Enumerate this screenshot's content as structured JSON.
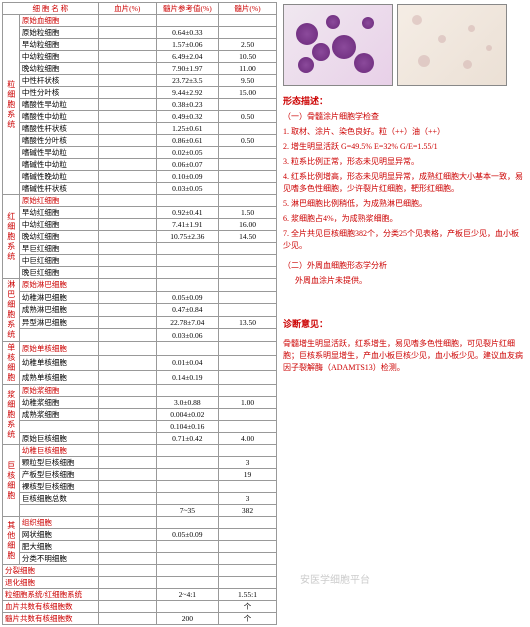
{
  "headers": {
    "c1": "细 胞 名 称",
    "c2": "血片(%)",
    "c3": "髓片参考值(%)",
    "c4": "髓片(%)"
  },
  "groups": [
    {
      "label": "粒细胞系统",
      "header": "原始血细胞",
      "rows": [
        {
          "n": "原始粒细胞",
          "v1": "",
          "v2": "0.64±0.33",
          "v3": ""
        },
        {
          "n": "早幼粒细胞",
          "v1": "",
          "v2": "1.57±0.06",
          "v3": "2.50"
        },
        {
          "n": "中幼粒细胞",
          "v1": "",
          "v2": "6.49±2.04",
          "v3": "10.50"
        },
        {
          "n": "晚幼粒细胞",
          "v1": "",
          "v2": "7.90±1.97",
          "v3": "11.00"
        },
        {
          "n": "中性杆状核",
          "v1": "",
          "v2": "23.72±3.5",
          "v3": "9.50"
        },
        {
          "n": "中性分叶核",
          "v1": "",
          "v2": "9.44±2.92",
          "v3": "15.00"
        },
        {
          "n": "嗜酸性早幼粒",
          "v1": "",
          "v2": "0.38±0.23",
          "v3": ""
        },
        {
          "n": "嗜酸性中幼粒",
          "v1": "",
          "v2": "0.49±0.32",
          "v3": "0.50"
        },
        {
          "n": "嗜酸性杆状核",
          "v1": "",
          "v2": "1.25±0.61",
          "v3": ""
        },
        {
          "n": "嗜酸性分叶核",
          "v1": "",
          "v2": "0.86±0.61",
          "v3": "0.50"
        },
        {
          "n": "嗜碱性早幼粒",
          "v1": "",
          "v2": "0.02±0.05",
          "v3": ""
        },
        {
          "n": "嗜碱性中幼粒",
          "v1": "",
          "v2": "0.06±0.07",
          "v3": ""
        },
        {
          "n": "嗜碱性晚幼粒",
          "v1": "",
          "v2": "0.10±0.09",
          "v3": ""
        },
        {
          "n": "嗜碱性杆状核",
          "v1": "",
          "v2": "0.03±0.05",
          "v3": ""
        }
      ]
    },
    {
      "label": "红细胞系统",
      "header": "原始红细胞",
      "rows": [
        {
          "n": "早幼红细胞",
          "v1": "",
          "v2": "0.92±0.41",
          "v3": "1.50"
        },
        {
          "n": "中幼红细胞",
          "v1": "",
          "v2": "7.41±1.91",
          "v3": "16.00"
        },
        {
          "n": "晚幼红细胞",
          "v1": "",
          "v2": "10.75±2.36",
          "v3": "14.50"
        },
        {
          "n": "早巨红细胞",
          "v1": "",
          "v2": "",
          "v3": ""
        },
        {
          "n": "中巨红细胞",
          "v1": "",
          "v2": "",
          "v3": ""
        },
        {
          "n": "晚巨红细胞",
          "v1": "",
          "v2": "",
          "v3": ""
        }
      ]
    },
    {
      "label": "淋巴细胞系统",
      "header": "原始淋巴细胞",
      "rows": [
        {
          "n": "幼稚淋巴细胞",
          "v1": "",
          "v2": "0.05±0.09",
          "v3": ""
        },
        {
          "n": "成熟淋巴细胞",
          "v1": "",
          "v2": "0.47±0.84",
          "v3": ""
        },
        {
          "n": "异型淋巴细胞",
          "v1": "",
          "v2": "22.78±7.04",
          "v3": "13.50"
        },
        {
          "n": "",
          "v1": "",
          "v2": "0.03±0.06",
          "v3": ""
        }
      ]
    },
    {
      "label": "单核细胞",
      "header": "原始单核细胞",
      "rows": [
        {
          "n": "幼稚单核细胞",
          "v1": "",
          "v2": "0.01±0.04",
          "v3": ""
        },
        {
          "n": "成熟单核细胞",
          "v1": "",
          "v2": "0.14±0.19",
          "v3": ""
        }
      ]
    },
    {
      "label": "浆细胞系统",
      "header": "原始浆细胞",
      "rows": [
        {
          "n": "幼稚浆细胞",
          "v1": "",
          "v2": "3.0±0.88",
          "v3": "1.00"
        },
        {
          "n": "成熟浆细胞",
          "v1": "",
          "v2": "0.004±0.02",
          "v3": ""
        },
        {
          "n": "",
          "v1": "",
          "v2": "0.104±0.16",
          "v3": ""
        },
        {
          "n": "原始巨核细胞",
          "v1": "",
          "v2": "0.71±0.42",
          "v3": "4.00"
        }
      ]
    },
    {
      "label": "巨核细胞",
      "header": "幼稚巨核细胞",
      "rows": [
        {
          "n": "颗粒型巨核细胞",
          "v1": "",
          "v2": "",
          "v3": "3"
        },
        {
          "n": "产板型巨核细胞",
          "v1": "",
          "v2": "",
          "v3": "19"
        },
        {
          "n": "裸核型巨核细胞",
          "v1": "",
          "v2": "",
          "v3": ""
        },
        {
          "n": "巨核细胞总数",
          "v1": "",
          "v2": "",
          "v3": "3"
        },
        {
          "n": "",
          "v1": "",
          "v2": "7~35",
          "v3": "382"
        }
      ]
    },
    {
      "label": "其他细胞",
      "header": "组织细胞",
      "rows": [
        {
          "n": "网状细胞",
          "v1": "",
          "v2": "0.05±0.09",
          "v3": ""
        },
        {
          "n": "肥大细胞",
          "v1": "",
          "v2": "",
          "v3": ""
        },
        {
          "n": "分类不明细胞",
          "v1": "",
          "v2": "",
          "v3": ""
        }
      ]
    }
  ],
  "footer": [
    {
      "n": "分裂细胞",
      "v1": "",
      "v2": "",
      "v3": ""
    },
    {
      "n": "退化细胞",
      "v1": "",
      "v2": "",
      "v3": ""
    },
    {
      "n": "粒细胞系统/红细胞系统",
      "v1": "",
      "v2": "2~4:1",
      "v3": "1.55:1"
    },
    {
      "n": "血片共数有核细胞数",
      "v1": "",
      "v2": "",
      "v3": "个"
    },
    {
      "n": "髓片共数有核细胞数",
      "v1": "",
      "v2": "200",
      "v3": "个"
    }
  ],
  "sec1_title": "形态描述：",
  "sec1_sub": "（一）骨髓涂片细胞学检查",
  "sec1_lines": [
    "1. 取材、涂片、染色良好。粒（++）油（++）",
    "2. 增生明显活跃  G=49.5%  E=32%  G/E=1.55/1",
    "3. 粒系比例正常，形态未见明显异常。",
    "4. 红系比例增高，形态未见明显异常，成熟红细胞大小基本一致，易见嗜多色性细胞，少许裂片红细胞，靶形红细胞。",
    "5. 淋巴细胞比例稍低，为成熟淋巴细胞。",
    "6. 浆细胞占4%，为成熟浆细胞。",
    "7. 全片共见巨核细胞382个，分类25个见表格，产板巨少见，血小板少见。"
  ],
  "sec2_title": "（二）外周血细胞形态学分析",
  "sec2_text": "外周血涂片未提供。",
  "diag_title": "诊断意见：",
  "diag_text": "骨髓增生明显活跃，红系增生，易见嗜多色性细胞，可见裂片红细胞；巨核系明显增生，产血小板巨核少见，血小板少见。建议血友病因子裂解酶（ADAMTS13）检测。",
  "watermark": "安医学细胞平台"
}
